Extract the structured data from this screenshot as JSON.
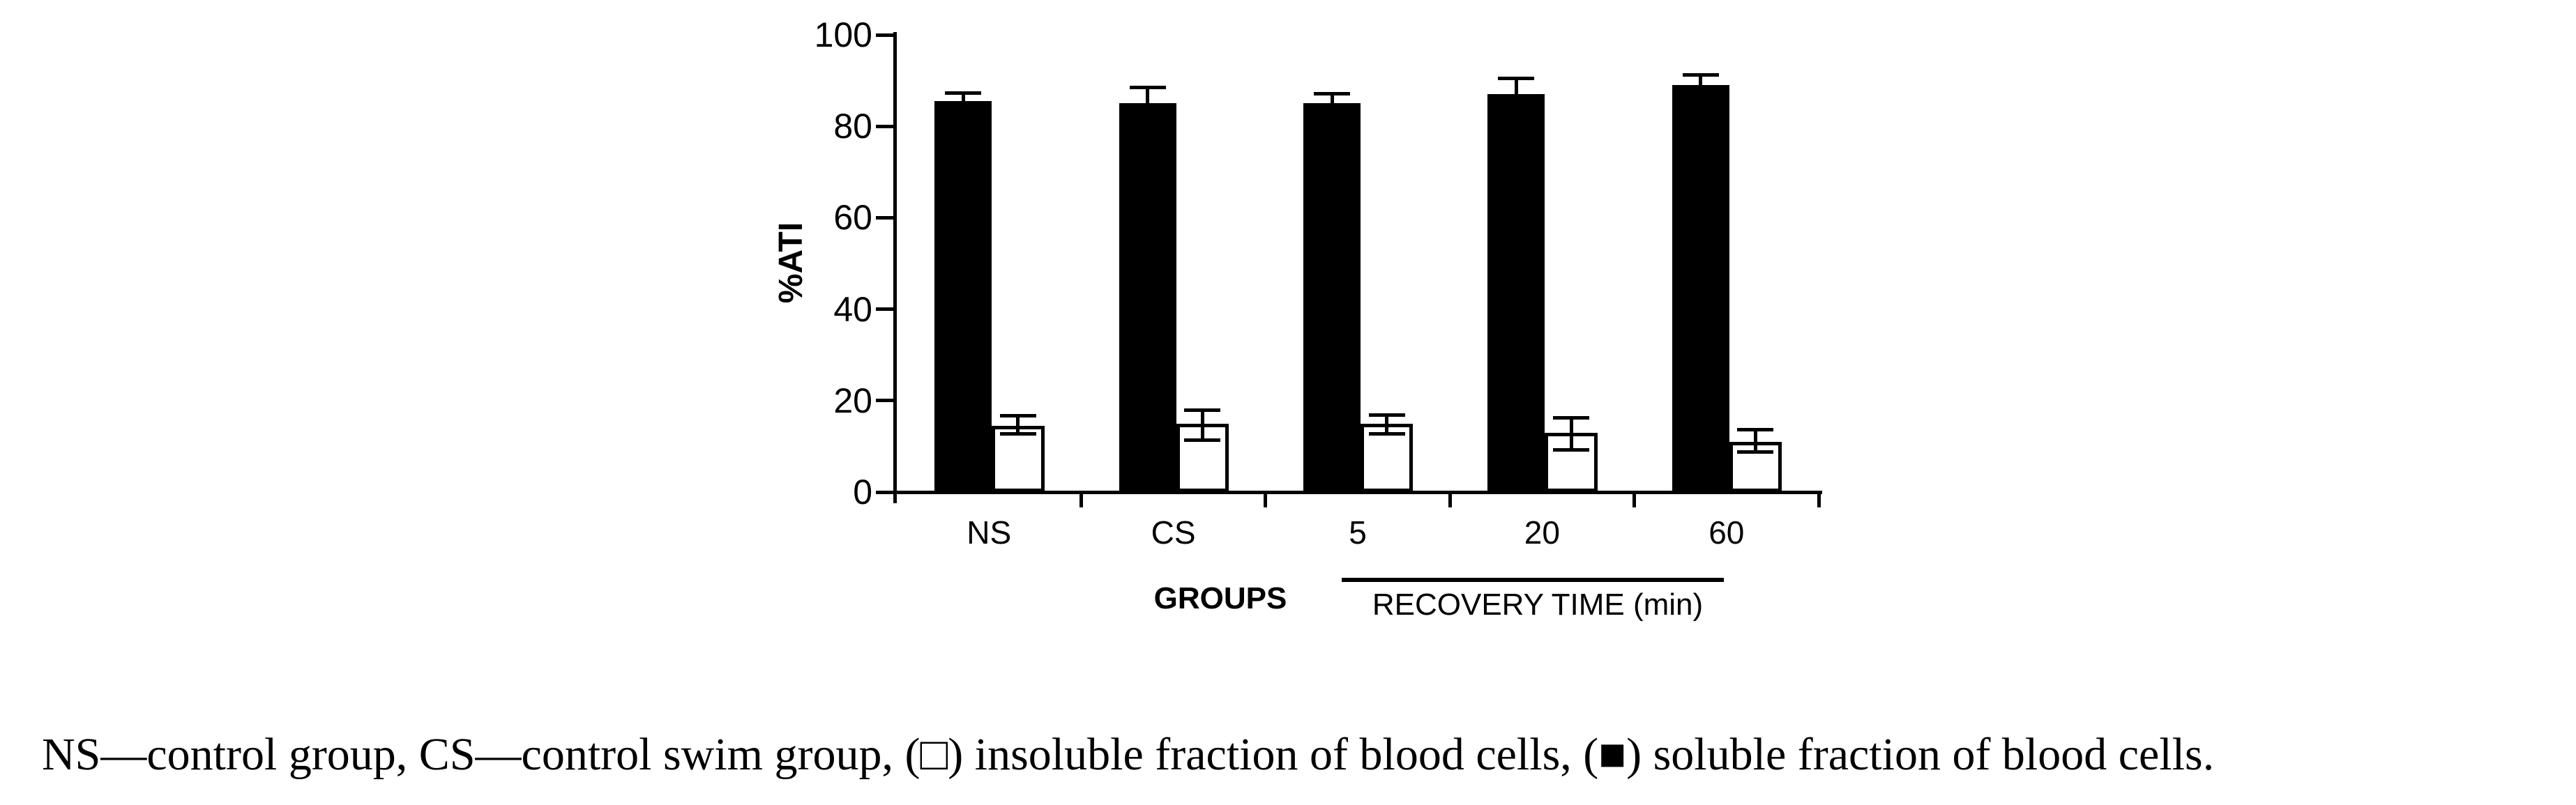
{
  "figure": {
    "caption": "NS—control group, CS—control swim group, (□) insoluble fraction of blood cells, (■) soluble fraction of blood cells."
  },
  "chart_data": {
    "type": "bar",
    "title": "",
    "ylabel": "%ATI",
    "xlabel_left": "GROUPS",
    "xlabel_right": "RECOVERY TIME (min)",
    "categories": [
      "NS",
      "CS",
      "5",
      "20",
      "60"
    ],
    "yticks": [
      0,
      20,
      40,
      60,
      80,
      100
    ],
    "ylim": [
      0,
      100
    ],
    "grid": false,
    "legend_position": "none",
    "bar_colors": {
      "soluble": "#000000",
      "insoluble": "#ffffff"
    },
    "series": [
      {
        "key": "soluble",
        "name": "soluble fraction of blood cells",
        "values": [
          85.5,
          85,
          85,
          87,
          89
        ],
        "err_up": [
          1.8,
          3.5,
          2.2,
          3.5,
          2.2
        ],
        "err_down": [
          0,
          0,
          0,
          0,
          0
        ]
      },
      {
        "key": "insoluble",
        "name": "insoluble fraction of blood cells",
        "values": [
          14.5,
          15,
          15,
          13,
          11
        ],
        "err_up": [
          2.2,
          2.9,
          1.9,
          3.3,
          2.6
        ],
        "err_down": [
          1.8,
          3.6,
          2.3,
          3.7,
          2.3
        ]
      }
    ],
    "recovery_time_categories": [
      "5",
      "20",
      "60"
    ]
  }
}
